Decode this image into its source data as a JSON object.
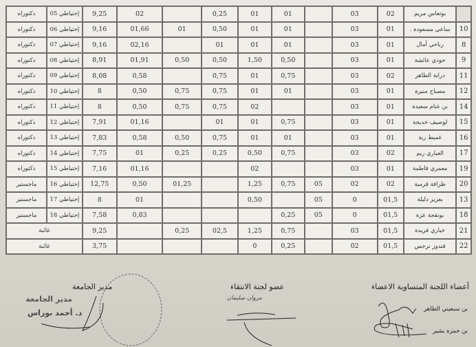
{
  "table": {
    "rows": [
      {
        "no": "",
        "name": "بوتعاس مريم",
        "c8": "02",
        "c7": "03",
        "c6": "",
        "c5": "01",
        "c4": "01",
        "c3": "0,25",
        "c2": "",
        "c1": "02",
        "total": "9,25",
        "rank": "إحتياطي 05",
        "degree": "دكتوراه"
      },
      {
        "no": "10",
        "name": "ساعي مسعودة .",
        "c8": "01",
        "c7": "03",
        "c6": "",
        "c5": "01",
        "c4": "01",
        "c3": "0,50",
        "c2": "01",
        "c1": "01,66",
        "total": "9,16",
        "rank": "إحتياطي 06",
        "degree": "دكتوراه"
      },
      {
        "no": "8",
        "name": "رباحي آمال",
        "c8": "01",
        "c7": "03",
        "c6": "",
        "c5": "01",
        "c4": "01",
        "c3": "01",
        "c2": "",
        "c1": "02,16",
        "total": "9,16",
        "rank": "إحتياطي 07",
        "degree": "دكتوراه"
      },
      {
        "no": "9",
        "name": "حودي عائشة",
        "c8": "01",
        "c7": "03",
        "c6": "",
        "c5": "0,50",
        "c4": "1,50",
        "c3": "0,50",
        "c2": "0,50",
        "c1": "01,91",
        "total": "8,91",
        "rank": "إحتياطي 08",
        "degree": "دكتوراه"
      },
      {
        "no": "11",
        "name": "دراية الطاهر",
        "c8": "02",
        "c7": "03",
        "c6": "",
        "c5": "0,75",
        "c4": "01",
        "c3": "0,75",
        "c2": "",
        "c1": "0,58",
        "total": "8,08",
        "rank": "إحتياطي 09",
        "degree": "دكتوراه"
      },
      {
        "no": "12",
        "name": "مصباح منيرة",
        "c8": "01",
        "c7": "03",
        "c6": "",
        "c5": "01",
        "c4": "01",
        "c3": "0,75",
        "c2": "0,75",
        "c1": "0,50",
        "total": "8",
        "rank": "إحتياطي 10",
        "degree": "دكتوراه"
      },
      {
        "no": "14",
        "name": "بن غنام سعيدة",
        "c8": "01",
        "c7": "03",
        "c6": "",
        "c5": "",
        "c4": "02",
        "c3": "0,75",
        "c2": "0,75",
        "c1": "0,50",
        "total": "8",
        "rank": "إحتياطي 11",
        "degree": "دكتوراه"
      },
      {
        "no": "15",
        "name": "لوصيف خديجة",
        "c8": "01",
        "c7": "03",
        "c6": "",
        "c5": "0,75",
        "c4": "01",
        "c3": "01",
        "c2": "",
        "c1": "01,16",
        "total": "7,91",
        "rank": "إحتياطي 12",
        "degree": "دكتوراه"
      },
      {
        "no": "16",
        "name": "غميط رية",
        "c8": "01",
        "c7": "03",
        "c6": "",
        "c5": "01",
        "c4": "01",
        "c3": "0,75",
        "c2": "0,50",
        "c1": "0,58",
        "total": "7,83",
        "rank": "إحتياطي 13",
        "degree": "دكتوراه"
      },
      {
        "no": "17",
        "name": "العياري ريم",
        "c8": "02",
        "c7": "03",
        "c6": "",
        "c5": "0,75",
        "c4": "0,50",
        "c3": "0,25",
        "c2": "0,25",
        "c1": "01",
        "total": "7,75",
        "rank": "إحتياطي 14",
        "degree": "دكتوراه"
      },
      {
        "no": "19",
        "name": "معمري فاطمة",
        "c8": "01",
        "c7": "03",
        "c6": "",
        "c5": "",
        "c4": "02",
        "c3": "",
        "c2": "",
        "c1": "01,16",
        "total": "7,16",
        "rank": "إحتياطي 15",
        "degree": "دكتوراه"
      },
      {
        "no": "20",
        "name": "ظرافة قرمية",
        "c8": "02",
        "c7": "02",
        "c6": "05",
        "c5": "0,75",
        "c4": "1,25",
        "c3": "",
        "c2": "01,25",
        "c1": "0,50",
        "total": "12,75",
        "rank": "إحتياطي 16",
        "degree": "ماجستير"
      },
      {
        "no": "13",
        "name": "بعزيز دليلة",
        "c8": "01,5",
        "c7": "0",
        "c6": "05",
        "c5": "",
        "c4": "0,50",
        "c3": "",
        "c2": "",
        "c1": "01",
        "total": "8",
        "rank": "إحتياطي 17",
        "degree": "ماجستير"
      },
      {
        "no": "18",
        "name": "بونقجة عزة",
        "c8": "01,5",
        "c7": "0",
        "c6": "05",
        "c5": "0,25",
        "c4": "",
        "c3": "",
        "c2": "",
        "c1": "0,83",
        "total": "7,58",
        "rank": "إحتياطي 18",
        "degree": "ماجستير"
      },
      {
        "no": "21",
        "name": "خياري فريدة",
        "c8": "01,5",
        "c7": "03",
        "c6": "",
        "c5": "0,75",
        "c4": "1,25",
        "c3": "02,5",
        "c2": "0,25",
        "c1": "",
        "total": "9,25",
        "status": "غائبة"
      },
      {
        "no": "22",
        "name": "قندوز نرجس",
        "c8": "01,5",
        "c7": "02",
        "c6": "",
        "c5": "0,25",
        "c4": "0",
        "c3": "",
        "c2": "",
        "c1": "",
        "total": "3,75",
        "status": "غائبة"
      }
    ]
  },
  "footer": {
    "committee_title": "أعضاء اللجنة المتساوية الاعضاء",
    "committee_members": [
      "بن سبعيني الطاهر",
      "بن حمزة بشير"
    ],
    "selection_member_title": "عضو لجنة الانتقاء",
    "selection_member_handwritten": "مروان سليمان",
    "director_title": "مدير الجامعة",
    "stamp_lines": [
      "مدير الجامعة",
      "د. أحمد بوراس"
    ]
  }
}
